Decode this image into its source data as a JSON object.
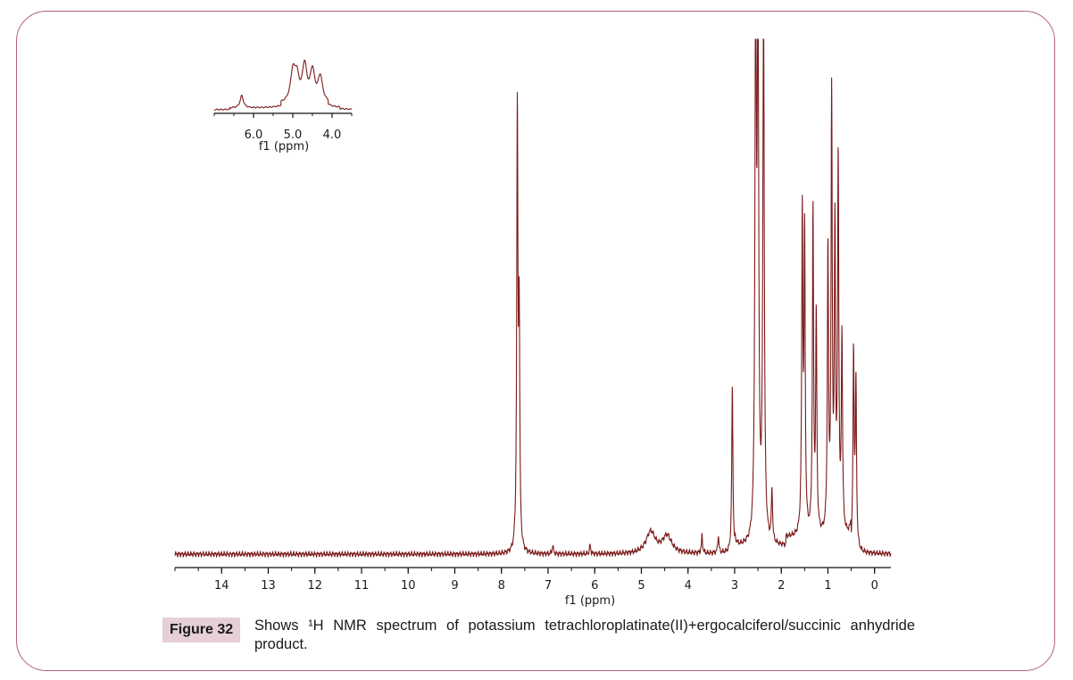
{
  "caption": {
    "label": "Figure 32",
    "text": "Shows ¹H NMR spectrum of potassium tetrachloroplatinate(II)+ergocalciferol/succinic anhydride product."
  },
  "colors": {
    "spectrum": "#7b1a1a",
    "frame": "#b4607a",
    "badge": "#e6cfd6"
  },
  "chart_data": [
    {
      "type": "line",
      "title": "",
      "xlabel": "f1 (ppm)",
      "ylabel": "",
      "xlim": [
        15,
        -0.35
      ],
      "x_reversed": true,
      "tick_labels": [
        "14",
        "13",
        "12",
        "11",
        "10",
        "9",
        "8",
        "7",
        "6",
        "5",
        "4",
        "3",
        "2",
        "1",
        "0"
      ],
      "tick_values": [
        14,
        13,
        12,
        11,
        10,
        9,
        8,
        7,
        6,
        5,
        4,
        3,
        2,
        1,
        0
      ],
      "series": [
        {
          "values_note": "relative intensity (0 = baseline, 100 = tallest shown peak); peaks at 2.55-2.35 ppm clipped",
          "peaks": [
            {
              "x": 7.66,
              "y": 100
            },
            {
              "x": 7.62,
              "y": 52
            },
            {
              "x": 6.9,
              "y": 2
            },
            {
              "x": 6.1,
              "y": 2
            },
            {
              "x": 4.8,
              "y": 5
            },
            {
              "x": 4.45,
              "y": 4
            },
            {
              "x": 3.7,
              "y": 4
            },
            {
              "x": 3.35,
              "y": 4
            },
            {
              "x": 3.05,
              "y": 38
            },
            {
              "x": 2.55,
              "y": 125
            },
            {
              "x": 2.5,
              "y": 125
            },
            {
              "x": 2.38,
              "y": 125
            },
            {
              "x": 2.2,
              "y": 12
            },
            {
              "x": 1.55,
              "y": 73
            },
            {
              "x": 1.5,
              "y": 68
            },
            {
              "x": 1.32,
              "y": 74
            },
            {
              "x": 1.25,
              "y": 50
            },
            {
              "x": 1.0,
              "y": 65
            },
            {
              "x": 0.92,
              "y": 100
            },
            {
              "x": 0.85,
              "y": 68
            },
            {
              "x": 0.78,
              "y": 85
            },
            {
              "x": 0.7,
              "y": 45
            },
            {
              "x": 0.45,
              "y": 45
            },
            {
              "x": 0.4,
              "y": 38
            }
          ]
        }
      ]
    },
    {
      "type": "line",
      "title": "",
      "xlabel": "f1 (ppm)",
      "ylabel": "",
      "xlim": [
        7.0,
        3.5
      ],
      "x_reversed": true,
      "tick_labels": [
        "6.0",
        "5.0",
        "4.0"
      ],
      "tick_values": [
        6.0,
        5.0,
        4.0
      ],
      "series": [
        {
          "values_note": "inset expansion 7.0-3.5 ppm, relative intensity",
          "peaks": [
            {
              "x": 6.3,
              "y": 30
            },
            {
              "x": 5.0,
              "y": 70
            },
            {
              "x": 4.9,
              "y": 58
            },
            {
              "x": 4.7,
              "y": 88
            },
            {
              "x": 4.5,
              "y": 75
            },
            {
              "x": 4.3,
              "y": 62
            }
          ]
        }
      ]
    }
  ]
}
